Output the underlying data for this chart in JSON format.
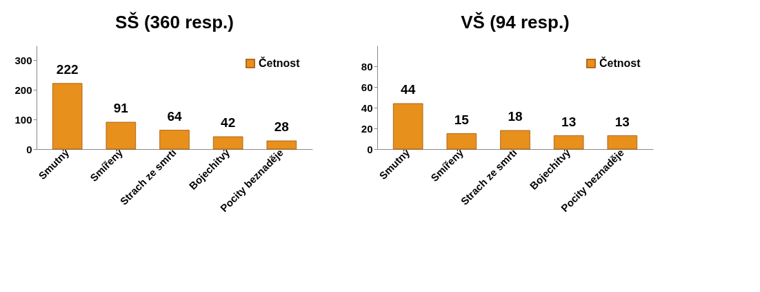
{
  "chart_data": [
    {
      "type": "bar",
      "title": "SŠ (360 resp.)",
      "categories": [
        "Smutný",
        "Smířený",
        "Strach ze smrti",
        "Bojechitvý",
        "Pocity beznaděje"
      ],
      "series": [
        {
          "name": "Četnost",
          "color": "#e8901c",
          "values": [
            222,
            91,
            64,
            42,
            28
          ]
        }
      ],
      "ylim": [
        0,
        350
      ],
      "yticks": [
        0,
        100,
        200,
        300
      ],
      "grid": false,
      "legend": "top right",
      "data_labels": true
    },
    {
      "type": "bar",
      "title": "VŠ (94 resp.)",
      "categories": [
        "Smutný",
        "Smířený",
        "Strach ze smrti",
        "Bojechitvý",
        "Pocity beznaděje"
      ],
      "series": [
        {
          "name": "Četnost",
          "color": "#e8901c",
          "values": [
            44,
            15,
            18,
            13,
            13
          ]
        }
      ],
      "ylim": [
        0,
        100
      ],
      "yticks": [
        0,
        20,
        40,
        60,
        80
      ],
      "grid": false,
      "legend": "top right",
      "data_labels": true
    }
  ]
}
